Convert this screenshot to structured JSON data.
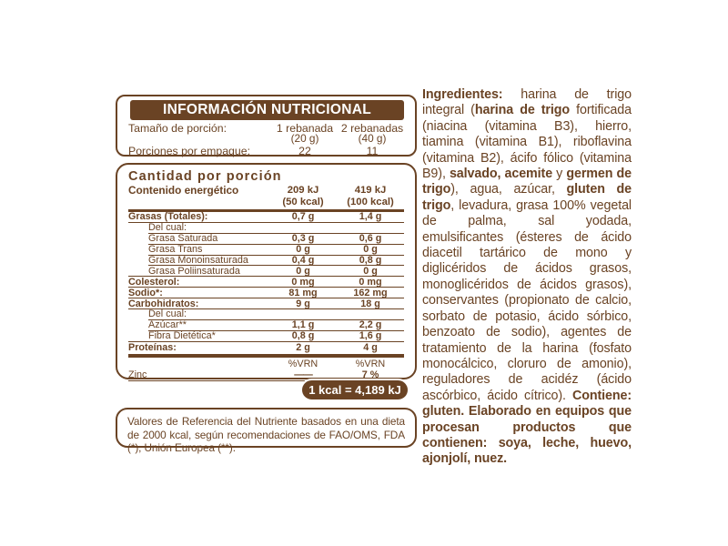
{
  "colors": {
    "brown": "#6a4324",
    "banner_text": "#ffffff",
    "background": "#ffffff"
  },
  "label": {
    "title": "INFORMACIÓN NUTRICIONAL",
    "serving": {
      "size_label": "Tamaño de porción:",
      "per_pack_label": "Porciones por empaque:",
      "col1": {
        "serving": "1 rebanada",
        "weight": "(20 g)",
        "count": "22"
      },
      "col2": {
        "serving": "2 rebanadas",
        "weight": "(40 g)",
        "count": "11"
      }
    },
    "amount_title": "Cantidad por porción",
    "energy": {
      "label": "Contenido energético",
      "col1_kj": "209 kJ",
      "col1_kcal": "(50 kcal)",
      "col2_kj": "419 kJ",
      "col2_kcal": "(100 kcal)"
    },
    "rows": [
      {
        "label": "Grasas (Totales):",
        "v1": "0,7 g",
        "v2": "1,4 g"
      },
      {
        "label": "Del cual:",
        "v1": "",
        "v2": ""
      },
      {
        "label": "Grasa Saturada",
        "v1": "0,3 g",
        "v2": "0,6 g"
      },
      {
        "label": "Grasa Trans",
        "v1": "0 g",
        "v2": "0 g"
      },
      {
        "label": "Grasa Monoinsaturada",
        "v1": "0,4 g",
        "v2": "0,8 g"
      },
      {
        "label": "Grasa Poliinsaturada",
        "v1": "0 g",
        "v2": "0 g"
      },
      {
        "label": "Colesterol:",
        "v1": "0 mg",
        "v2": "0 mg"
      },
      {
        "label": "Sodio*:",
        "v1": "81 mg",
        "v2": "162 mg"
      },
      {
        "label": "Carbohidratos:",
        "v1": "9 g",
        "v2": "18 g"
      },
      {
        "label": "Del cual:",
        "v1": "",
        "v2": ""
      },
      {
        "label": "Azúcar**",
        "v1": "1,1 g",
        "v2": "2,2 g"
      },
      {
        "label": "Fibra Dietética*",
        "v1": "0,8 g",
        "v2": "1,6 g"
      },
      {
        "label": "Proteínas:",
        "v1": "2 g",
        "v2": "4 g"
      }
    ],
    "vrn_header": {
      "col1": "%VRN",
      "col2": "%VRN"
    },
    "zinc": {
      "label": "Zinc",
      "v1": "——",
      "v2": "7 %"
    },
    "kcal_equivalence": "1 kcal = 4,189 kJ",
    "footnote": "Valores de Referencia del Nutriente basados en una dieta de 2000 kcal, según recomendaciones de FAO/OMS, FDA (*), Unión Europea (**)."
  },
  "ingredients": {
    "segments": [
      {
        "text": "Ingredientes:",
        "bold": true
      },
      {
        "text": " harina de trigo integral (",
        "bold": false
      },
      {
        "text": "harina de trigo",
        "bold": true
      },
      {
        "text": " fortificada (niacina (vitamina B3), hierro, tiamina (vitamina B1), riboflavina (vitamina B2), ácifo fólico (vitamina B9), ",
        "bold": false
      },
      {
        "text": "salvado, acemite",
        "bold": true
      },
      {
        "text": " y ",
        "bold": false
      },
      {
        "text": "germen de trigo",
        "bold": true
      },
      {
        "text": "), agua, azúcar, ",
        "bold": false
      },
      {
        "text": "gluten de trigo",
        "bold": true
      },
      {
        "text": ", levadura, grasa 100% vegetal de palma, sal yodada, emulsificantes (ésteres de ácido diacetil tartárico de mono y diglicéridos de ácidos grasos, monoglicéridos de ácidos grasos), conservantes (propionato de calcio, sorbato de potasio, ácido sórbico, benzoato de sodio), agentes de tratamiento de la harina (fosfato monocálcico, cloruro de amonio), reguladores de acidéz (ácido ascórbico, ácido cítrico). ",
        "bold": false
      },
      {
        "text": "Contiene: gluten. Elaborado en equipos que procesan productos que contienen: soya, leche, huevo, ajonjolí, nuez.",
        "bold": true
      }
    ]
  }
}
